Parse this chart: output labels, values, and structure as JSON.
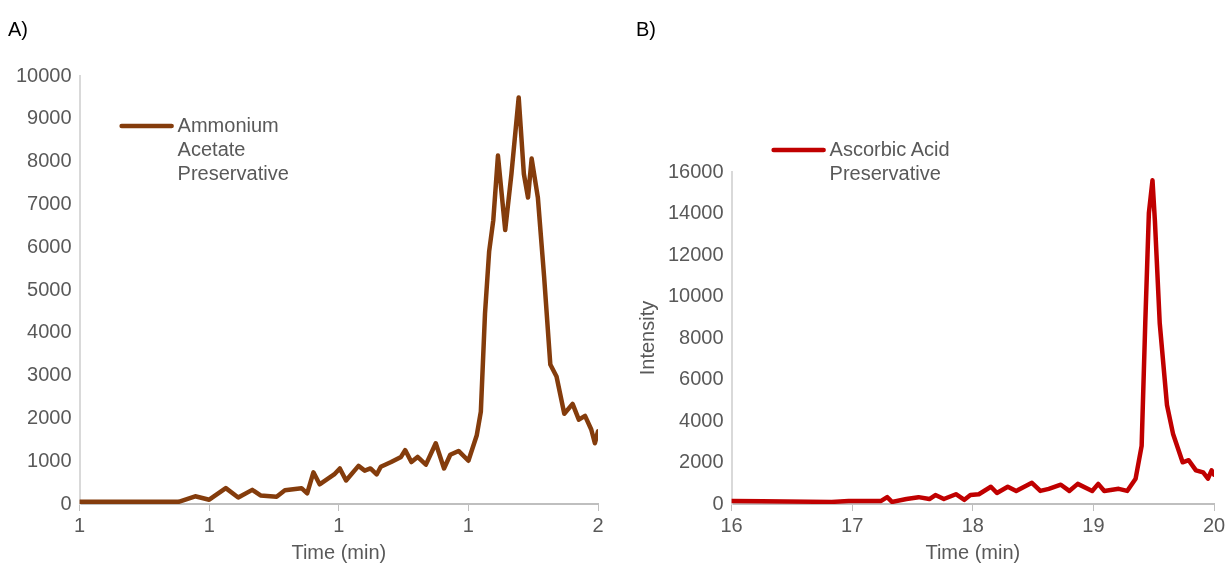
{
  "chart_data": [
    {
      "type": "line",
      "title": "A)",
      "xlabel": "Time (min)",
      "xlim": [
        1.1,
        1.5
      ],
      "xticks": [
        {
          "value": 1.1,
          "label": "1"
        },
        {
          "value": 1.2,
          "label": "1"
        },
        {
          "value": 1.3,
          "label": "1"
        },
        {
          "value": 1.4,
          "label": "1"
        },
        {
          "value": 1.5,
          "label": "2"
        }
      ],
      "ylim": [
        0,
        10000
      ],
      "yticks": [
        0,
        1000,
        2000,
        3000,
        4000,
        5000,
        6000,
        7000,
        8000,
        9000,
        10000
      ],
      "grid": false,
      "legend": "top left",
      "marker": "none",
      "line_style": "solid",
      "series": [
        {
          "name": "Ammonium Acetate Preservative",
          "color": "#843c0c",
          "x": [
            1.1,
            1.1764,
            1.1892,
            1.2,
            1.2128,
            1.2224,
            1.2332,
            1.2396,
            1.252,
            1.2584,
            1.2712,
            1.2756,
            1.2804,
            1.2852,
            1.2964,
            1.3008,
            1.3056,
            1.3152,
            1.32,
            1.3244,
            1.3292,
            1.3324,
            1.3404,
            1.348,
            1.3512,
            1.356,
            1.3608,
            1.3672,
            1.3748,
            1.3812,
            1.386,
            1.3924,
            1.4,
            1.4064,
            1.4096,
            1.4128,
            1.416,
            1.4192,
            1.4228,
            1.4284,
            1.4332,
            1.4388,
            1.4428,
            1.446,
            1.4488,
            1.4536,
            1.4584,
            1.4632,
            1.468,
            1.474,
            1.4804,
            1.4852,
            1.49,
            1.4948,
            1.4976,
            1.5
          ],
          "values": [
            50,
            50,
            180,
            100,
            370,
            150,
            330,
            200,
            170,
            320,
            370,
            250,
            740,
            460,
            690,
            830,
            550,
            890,
            780,
            830,
            690,
            870,
            980,
            1100,
            1260,
            980,
            1100,
            920,
            1420,
            830,
            1150,
            1240,
            1010,
            1600,
            2160,
            4450,
            5900,
            6630,
            8140,
            6400,
            7710,
            9500,
            7710,
            7160,
            8070,
            7160,
            5320,
            3260,
            2980,
            2110,
            2340,
            1970,
            2060,
            1740,
            1420,
            1700
          ]
        }
      ]
    },
    {
      "type": "line",
      "title": "B)",
      "xlabel": "Time (min)",
      "ylabel": "Intensity",
      "xlim": [
        16,
        20
      ],
      "xticks": [
        16,
        17,
        18,
        19,
        20
      ],
      "ylim": [
        0,
        16000
      ],
      "yticks": [
        0,
        2000,
        4000,
        6000,
        8000,
        10000,
        12000,
        14000,
        16000
      ],
      "grid": false,
      "legend": "top left",
      "marker": "none",
      "line_style": "solid",
      "series": [
        {
          "name": "Ascorbic Acid Preservative",
          "color": "#c00000",
          "x": [
            16,
            16.83,
            16.97,
            17.24,
            17.29,
            17.33,
            17.45,
            17.55,
            17.64,
            17.69,
            17.76,
            17.86,
            17.93,
            17.98,
            18.05,
            18.15,
            18.2,
            18.29,
            18.36,
            18.49,
            18.56,
            18.63,
            18.73,
            18.8,
            18.87,
            18.99,
            19.04,
            19.09,
            19.21,
            19.28,
            19.35,
            19.4,
            19.43,
            19.46,
            19.49,
            19.51,
            19.55,
            19.61,
            19.66,
            19.74,
            19.79,
            19.85,
            19.91,
            19.95,
            19.98,
            20.0
          ],
          "values": [
            150,
            100,
            150,
            150,
            330,
            100,
            240,
            330,
            240,
            430,
            240,
            470,
            200,
            430,
            470,
            830,
            530,
            830,
            630,
            1020,
            630,
            730,
            930,
            630,
            970,
            630,
            970,
            630,
            730,
            630,
            1220,
            2800,
            8710,
            14030,
            15600,
            13640,
            8710,
            4770,
            3390,
            2010,
            2110,
            1620,
            1520,
            1220,
            1620,
            1420
          ]
        }
      ]
    }
  ]
}
